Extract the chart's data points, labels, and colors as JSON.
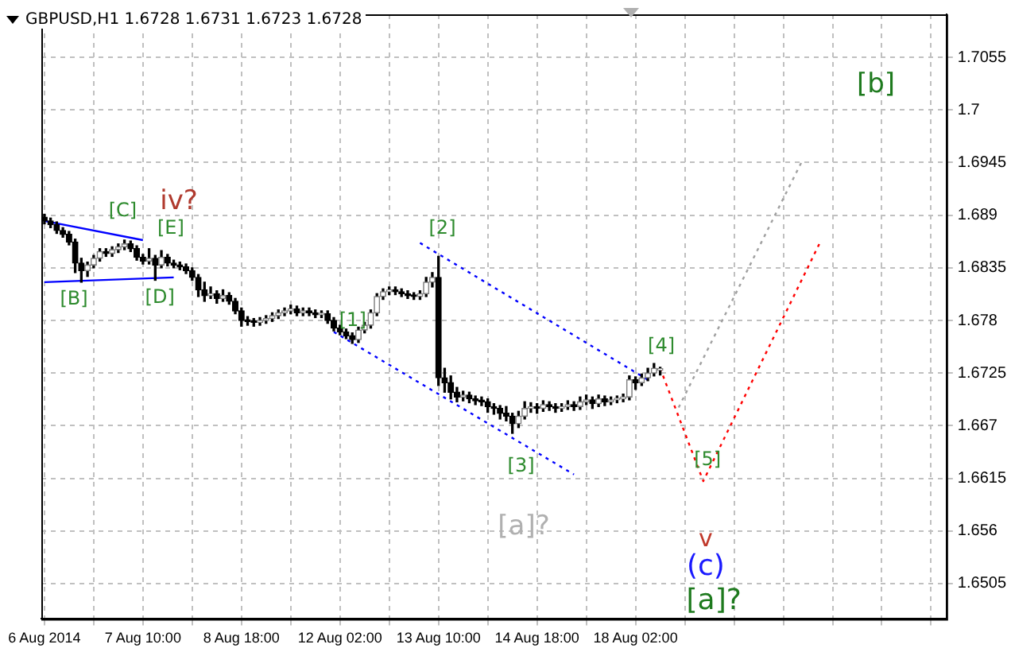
{
  "chart_data": {
    "type": "candlestick",
    "title": "GBPUSD,H1  1.6728 1.6731 1.6723 1.6728",
    "categories": [
      "6 Aug 2014",
      null,
      null,
      null,
      null,
      null,
      null,
      null,
      null,
      null,
      null,
      null,
      null,
      null,
      null,
      null,
      "7 Aug 10:00",
      null,
      null,
      null,
      null,
      null,
      null,
      null,
      null,
      null,
      null,
      null,
      null,
      null,
      null,
      null,
      "8 Aug 18:00",
      null,
      null,
      null,
      null,
      null,
      null,
      null,
      null,
      null,
      null,
      null,
      null,
      null,
      null,
      null,
      "12 Aug 02:00",
      null,
      null,
      null,
      null,
      null,
      null,
      null,
      null,
      null,
      null,
      null,
      null,
      null,
      null,
      null,
      "13 Aug 10:00",
      null,
      null,
      null,
      null,
      null,
      null,
      null,
      null,
      null,
      null,
      null,
      null,
      null,
      null,
      null,
      "14 Aug 18:00",
      null,
      null,
      null,
      null,
      null,
      null,
      null,
      null,
      null,
      null,
      null,
      null,
      null,
      null,
      null,
      "18 Aug 02:00",
      null,
      null,
      null,
      null,
      null,
      null,
      null,
      null,
      null,
      null,
      null,
      null,
      null,
      null,
      null,
      null,
      null,
      null,
      null,
      null,
      null,
      null,
      null,
      null,
      null,
      null,
      null,
      null,
      null,
      null,
      null,
      null,
      null,
      null,
      null,
      null,
      null,
      null,
      null,
      null,
      null,
      null,
      null,
      null,
      null,
      null,
      null,
      null,
      null,
      null
    ],
    "ohlc": [
      [
        1.6888,
        1.6891,
        1.6881,
        1.6884
      ],
      [
        1.6884,
        1.6887,
        1.6877,
        1.688
      ],
      [
        1.688,
        1.6883,
        1.6871,
        1.6874
      ],
      [
        1.6874,
        1.6877,
        1.6867,
        1.687
      ],
      [
        1.687,
        1.6873,
        1.6859,
        1.6862
      ],
      [
        1.6862,
        1.6865,
        1.683,
        1.684
      ],
      [
        1.684,
        1.6845,
        1.682,
        1.6832
      ],
      [
        1.6832,
        1.6841,
        1.6826,
        1.6838
      ],
      [
        1.6838,
        1.6848,
        1.6835,
        1.6845
      ],
      [
        1.6845,
        1.6855,
        1.6842,
        1.6852
      ],
      [
        1.6852,
        1.6855,
        1.6847,
        1.685
      ],
      [
        1.685,
        1.6857,
        1.6847,
        1.6854
      ],
      [
        1.6854,
        1.686,
        1.6851,
        1.6857
      ],
      [
        1.6857,
        1.6864,
        1.6854,
        1.686
      ],
      [
        1.686,
        1.6863,
        1.6852,
        1.6855
      ],
      [
        1.6855,
        1.6858,
        1.6843,
        1.6846
      ],
      [
        1.6846,
        1.6849,
        1.6839,
        1.6842
      ],
      [
        1.6842,
        1.6855,
        1.6839,
        1.6845
      ],
      [
        1.6845,
        1.6848,
        1.6822,
        1.6838
      ],
      [
        1.6838,
        1.6853,
        1.6835,
        1.6846
      ],
      [
        1.6846,
        1.6849,
        1.6837,
        1.684
      ],
      [
        1.684,
        1.6843,
        1.6835,
        1.6838
      ],
      [
        1.6838,
        1.6841,
        1.6833,
        1.6836
      ],
      [
        1.6836,
        1.6839,
        1.6829,
        1.6832
      ],
      [
        1.6832,
        1.6835,
        1.6822,
        1.6825
      ],
      [
        1.6825,
        1.6828,
        1.6805,
        1.6812
      ],
      [
        1.6812,
        1.682,
        1.68,
        1.6806
      ],
      [
        1.6806,
        1.6815,
        1.6803,
        1.6808
      ],
      [
        1.6808,
        1.6811,
        1.6798,
        1.6803
      ],
      [
        1.6803,
        1.6812,
        1.68,
        1.6806
      ],
      [
        1.6806,
        1.6809,
        1.6797,
        1.68
      ],
      [
        1.68,
        1.6803,
        1.6787,
        1.679
      ],
      [
        1.679,
        1.6793,
        1.6774,
        1.678
      ],
      [
        1.678,
        1.6784,
        1.6775,
        1.6779
      ],
      [
        1.6779,
        1.6782,
        1.6774,
        1.6778
      ],
      [
        1.6778,
        1.6783,
        1.6775,
        1.678
      ],
      [
        1.678,
        1.6785,
        1.6777,
        1.6782
      ],
      [
        1.6782,
        1.6788,
        1.6779,
        1.6785
      ],
      [
        1.6785,
        1.6791,
        1.6782,
        1.6788
      ],
      [
        1.6788,
        1.6793,
        1.6785,
        1.679
      ],
      [
        1.679,
        1.6796,
        1.6787,
        1.6792
      ],
      [
        1.6792,
        1.6795,
        1.6785,
        1.6788
      ],
      [
        1.6788,
        1.6793,
        1.6785,
        1.679
      ],
      [
        1.679,
        1.6793,
        1.6785,
        1.6788
      ],
      [
        1.6788,
        1.6791,
        1.6783,
        1.6786
      ],
      [
        1.6786,
        1.679,
        1.6783,
        1.6787
      ],
      [
        1.6787,
        1.679,
        1.6777,
        1.678
      ],
      [
        1.678,
        1.6783,
        1.6769,
        1.6772
      ],
      [
        1.6772,
        1.6775,
        1.6765,
        1.6768
      ],
      [
        1.6768,
        1.6771,
        1.6761,
        1.6764
      ],
      [
        1.6764,
        1.6767,
        1.6756,
        1.676
      ],
      [
        1.676,
        1.6773,
        1.6757,
        1.677
      ],
      [
        1.677,
        1.6778,
        1.6767,
        1.6775
      ],
      [
        1.6775,
        1.6791,
        1.6772,
        1.6788
      ],
      [
        1.6788,
        1.6808,
        1.6785,
        1.6805
      ],
      [
        1.6805,
        1.6813,
        1.6802,
        1.681
      ],
      [
        1.681,
        1.6815,
        1.6807,
        1.6812
      ],
      [
        1.6812,
        1.6815,
        1.6807,
        1.681
      ],
      [
        1.681,
        1.6813,
        1.6805,
        1.6808
      ],
      [
        1.6808,
        1.6811,
        1.6803,
        1.6806
      ],
      [
        1.6806,
        1.6809,
        1.6802,
        1.6805
      ],
      [
        1.6805,
        1.6811,
        1.6802,
        1.6808
      ],
      [
        1.6808,
        1.6825,
        1.6805,
        1.682
      ],
      [
        1.682,
        1.683,
        1.6815,
        1.6825
      ],
      [
        1.6825,
        1.6847,
        1.6712,
        1.672
      ],
      [
        1.672,
        1.673,
        1.6705,
        1.6715
      ],
      [
        1.6715,
        1.6722,
        1.6698,
        1.6705
      ],
      [
        1.6705,
        1.671,
        1.6695,
        1.67
      ],
      [
        1.67,
        1.6706,
        1.6696,
        1.6702
      ],
      [
        1.6702,
        1.6705,
        1.6694,
        1.6698
      ],
      [
        1.6698,
        1.6701,
        1.6692,
        1.6696
      ],
      [
        1.6696,
        1.67,
        1.6691,
        1.6695
      ],
      [
        1.6695,
        1.6698,
        1.6684,
        1.669
      ],
      [
        1.669,
        1.6693,
        1.6682,
        1.6688
      ],
      [
        1.6688,
        1.6691,
        1.6677,
        1.6683
      ],
      [
        1.6683,
        1.669,
        1.6675,
        1.668
      ],
      [
        1.668,
        1.6683,
        1.6662,
        1.6672
      ],
      [
        1.6672,
        1.6685,
        1.6668,
        1.668
      ],
      [
        1.668,
        1.6695,
        1.6677,
        1.6688
      ],
      [
        1.6688,
        1.6694,
        1.6684,
        1.669
      ],
      [
        1.669,
        1.6693,
        1.6683,
        1.6688
      ],
      [
        1.6688,
        1.6696,
        1.6685,
        1.6692
      ],
      [
        1.6692,
        1.6695,
        1.6686,
        1.669
      ],
      [
        1.669,
        1.6693,
        1.6684,
        1.6688
      ],
      [
        1.6688,
        1.6693,
        1.6685,
        1.669
      ],
      [
        1.669,
        1.6696,
        1.6687,
        1.6692
      ],
      [
        1.6692,
        1.6695,
        1.6686,
        1.669
      ],
      [
        1.669,
        1.67,
        1.6687,
        1.6695
      ],
      [
        1.6695,
        1.6702,
        1.6692,
        1.6697
      ],
      [
        1.6697,
        1.67,
        1.6688,
        1.6693
      ],
      [
        1.6693,
        1.6702,
        1.669,
        1.6698
      ],
      [
        1.6698,
        1.6701,
        1.6691,
        1.6695
      ],
      [
        1.6695,
        1.67,
        1.6692,
        1.6697
      ],
      [
        1.6697,
        1.6701,
        1.6694,
        1.6698
      ],
      [
        1.6698,
        1.6703,
        1.6695,
        1.67
      ],
      [
        1.67,
        1.6722,
        1.6697,
        1.6718
      ],
      [
        1.6718,
        1.6721,
        1.6708,
        1.6715
      ],
      [
        1.6715,
        1.6724,
        1.6712,
        1.672
      ],
      [
        1.672,
        1.673,
        1.6717,
        1.6725
      ],
      [
        1.6725,
        1.6735,
        1.6722,
        1.673
      ],
      [
        1.6728,
        1.6731,
        1.6723,
        1.6728
      ],
      null,
      null,
      null,
      null,
      null,
      null,
      null,
      null,
      null,
      null,
      null,
      null,
      null,
      null,
      null,
      null,
      null,
      null,
      null,
      null,
      null,
      null,
      null,
      null,
      null,
      null,
      null,
      null,
      null,
      null,
      null,
      null,
      null,
      null,
      null,
      null,
      null,
      null,
      null,
      null,
      null,
      null,
      null,
      null,
      null,
      null
    ],
    "series": [
      {
        "type": "line",
        "color": "#ff0000",
        "line_style": "dotted",
        "values": [
          null,
          null,
          null,
          null,
          null,
          null,
          null,
          null,
          null,
          null,
          null,
          null,
          null,
          null,
          null,
          null,
          null,
          null,
          null,
          null,
          null,
          null,
          null,
          null,
          null,
          null,
          null,
          null,
          null,
          null,
          null,
          null,
          null,
          null,
          null,
          null,
          null,
          null,
          null,
          null,
          null,
          null,
          null,
          null,
          null,
          null,
          null,
          null,
          null,
          null,
          null,
          null,
          null,
          null,
          null,
          null,
          null,
          null,
          null,
          null,
          null,
          null,
          null,
          null,
          null,
          null,
          null,
          null,
          null,
          null,
          null,
          null,
          null,
          null,
          null,
          null,
          null,
          null,
          null,
          null,
          null,
          null,
          null,
          null,
          null,
          null,
          null,
          null,
          null,
          null,
          null,
          null,
          null,
          null,
          null,
          null,
          null,
          null,
          null,
          null,
          1.673,
          null,
          null,
          null,
          null,
          null,
          null,
          1.6612,
          null,
          null,
          null,
          null,
          null,
          null,
          null,
          null,
          null,
          null,
          null,
          null,
          null,
          null,
          null,
          null,
          null,
          null,
          1.6862,
          null,
          null,
          null,
          null,
          null,
          null,
          null,
          null,
          null,
          null,
          null,
          null,
          null,
          null,
          null,
          null,
          null,
          null,
          null,
          null
        ]
      },
      {
        "type": "line",
        "color": "#a0a0a0",
        "line_style": "dotted",
        "values": [
          null,
          null,
          null,
          null,
          null,
          null,
          null,
          null,
          null,
          null,
          null,
          null,
          null,
          null,
          null,
          null,
          null,
          null,
          null,
          null,
          null,
          null,
          null,
          null,
          null,
          null,
          null,
          null,
          null,
          null,
          null,
          null,
          null,
          null,
          null,
          null,
          null,
          null,
          null,
          null,
          null,
          null,
          null,
          null,
          null,
          null,
          null,
          null,
          null,
          null,
          null,
          null,
          null,
          null,
          null,
          null,
          null,
          null,
          null,
          null,
          null,
          null,
          null,
          null,
          null,
          null,
          null,
          null,
          null,
          null,
          null,
          null,
          null,
          null,
          null,
          null,
          null,
          null,
          null,
          null,
          null,
          null,
          null,
          null,
          null,
          null,
          null,
          null,
          null,
          null,
          null,
          null,
          null,
          null,
          null,
          null,
          null,
          null,
          null,
          null,
          null,
          null,
          null,
          1.6689,
          null,
          null,
          null,
          null,
          null,
          null,
          null,
          null,
          null,
          null,
          null,
          null,
          null,
          null,
          null,
          null,
          null,
          null,
          null,
          1.6946,
          null,
          null,
          null,
          null,
          null,
          null,
          null,
          null,
          null,
          null,
          null,
          null,
          null,
          null,
          null,
          null,
          null,
          null,
          null,
          null,
          null,
          null,
          null
        ]
      },
      {
        "type": "line",
        "color": "#0000ff",
        "line_style": "dotted",
        "values": [
          null,
          null,
          null,
          null,
          null,
          null,
          null,
          null,
          null,
          null,
          null,
          null,
          null,
          null,
          null,
          null,
          null,
          null,
          null,
          null,
          null,
          null,
          null,
          null,
          null,
          null,
          null,
          null,
          null,
          null,
          null,
          null,
          null,
          null,
          null,
          null,
          null,
          null,
          null,
          null,
          null,
          null,
          null,
          null,
          null,
          null,
          null,
          null,
          null,
          null,
          null,
          null,
          null,
          null,
          null,
          null,
          null,
          null,
          null,
          null,
          null,
          1.6861,
          null,
          null,
          null,
          null,
          null,
          null,
          null,
          null,
          null,
          null,
          null,
          null,
          null,
          null,
          null,
          null,
          null,
          null,
          null,
          null,
          null,
          null,
          null,
          null,
          null,
          null,
          null,
          null,
          null,
          null,
          null,
          null,
          null,
          null,
          null,
          null,
          1.6718,
          null,
          null,
          null,
          null,
          null,
          null,
          null,
          null,
          null,
          null,
          null,
          null,
          null,
          null,
          null,
          null,
          null,
          null,
          null,
          null,
          null,
          null,
          null,
          null,
          null,
          null,
          null,
          null,
          null,
          null,
          null,
          null,
          null,
          null,
          null,
          null,
          null,
          null,
          null,
          null,
          null,
          null,
          null,
          null,
          null,
          null,
          null,
          null
        ]
      },
      {
        "type": "line",
        "color": "#0000ff",
        "line_style": "dotted",
        "values": [
          null,
          null,
          null,
          null,
          null,
          null,
          null,
          null,
          null,
          null,
          null,
          null,
          null,
          null,
          null,
          null,
          null,
          null,
          null,
          null,
          null,
          null,
          null,
          null,
          null,
          null,
          null,
          null,
          null,
          null,
          null,
          null,
          null,
          null,
          null,
          null,
          null,
          null,
          null,
          null,
          null,
          null,
          null,
          null,
          null,
          null,
          null,
          1.6768,
          null,
          null,
          null,
          null,
          null,
          null,
          null,
          null,
          null,
          null,
          null,
          null,
          null,
          null,
          null,
          null,
          null,
          null,
          null,
          null,
          null,
          null,
          null,
          null,
          null,
          null,
          null,
          null,
          null,
          null,
          null,
          null,
          null,
          null,
          null,
          null,
          null,
          null,
          1.6619,
          null,
          null,
          null,
          null,
          null,
          null,
          null,
          null,
          null,
          null,
          null,
          null,
          null,
          null,
          null,
          null,
          null,
          null,
          null,
          null,
          null,
          null,
          null,
          null,
          null,
          null,
          null,
          null,
          null,
          null,
          null,
          null,
          null,
          null,
          null,
          null,
          null,
          null,
          null,
          null,
          null,
          null,
          null,
          null,
          null,
          null,
          null,
          null,
          null,
          null,
          null,
          null,
          null,
          null,
          null,
          null,
          null,
          null,
          null,
          null
        ]
      },
      {
        "type": "line",
        "color": "#0000ff",
        "line_style": "solid",
        "values": [
          1.6884,
          null,
          null,
          null,
          null,
          null,
          null,
          null,
          null,
          null,
          null,
          null,
          null,
          null,
          null,
          null,
          1.6864,
          null,
          null,
          null,
          null,
          null,
          null,
          null,
          null,
          null,
          null,
          null,
          null,
          null,
          null,
          null,
          null,
          null,
          null,
          null,
          null,
          null,
          null,
          null,
          null,
          null,
          null,
          null,
          null,
          null,
          null,
          null,
          null,
          null,
          null,
          null,
          null,
          null,
          null,
          null,
          null,
          null,
          null,
          null,
          null,
          null,
          null,
          null,
          null,
          null,
          null,
          null,
          null,
          null,
          null,
          null,
          null,
          null,
          null,
          null,
          null,
          null,
          null,
          null,
          null,
          null,
          null,
          null,
          null,
          null,
          null,
          null,
          null,
          null,
          null,
          null,
          null,
          null,
          null,
          null,
          null,
          null,
          null,
          null,
          null,
          null,
          null,
          null,
          null,
          null,
          null,
          null,
          null,
          null,
          null,
          null,
          null,
          null,
          null,
          null,
          null,
          null,
          null,
          null,
          null,
          null,
          null,
          null,
          null,
          null,
          null,
          null,
          null,
          null,
          null,
          null,
          null,
          null,
          null,
          null,
          null,
          null,
          null,
          null,
          null,
          null,
          null,
          null,
          null,
          null,
          null
        ]
      },
      {
        "type": "line",
        "color": "#0000ff",
        "line_style": "solid",
        "values": [
          1.682,
          null,
          null,
          null,
          null,
          null,
          null,
          null,
          null,
          null,
          null,
          null,
          null,
          null,
          null,
          null,
          null,
          null,
          null,
          null,
          null,
          1.6825,
          null,
          null,
          null,
          null,
          null,
          null,
          null,
          null,
          null,
          null,
          null,
          null,
          null,
          null,
          null,
          null,
          null,
          null,
          null,
          null,
          null,
          null,
          null,
          null,
          null,
          null,
          null,
          null,
          null,
          null,
          null,
          null,
          null,
          null,
          null,
          null,
          null,
          null,
          null,
          null,
          null,
          null,
          null,
          null,
          null,
          null,
          null,
          null,
          null,
          null,
          null,
          null,
          null,
          null,
          null,
          null,
          null,
          null,
          null,
          null,
          null,
          null,
          null,
          null,
          null,
          null,
          null,
          null,
          null,
          null,
          null,
          null,
          null,
          null,
          null,
          null,
          null,
          null,
          null,
          null,
          null,
          null,
          null,
          null,
          null,
          null,
          null,
          null,
          null,
          null,
          null,
          null,
          null,
          null,
          null,
          null,
          null,
          null,
          null,
          null,
          null,
          null,
          null,
          null,
          null,
          null,
          null,
          null,
          null,
          null,
          null,
          null,
          null,
          null,
          null,
          null,
          null,
          null,
          null,
          null,
          null,
          null,
          null,
          null,
          null
        ]
      }
    ],
    "annotations": [
      "[B]",
      "[C]",
      "[D]",
      "[E]",
      "iv?",
      "[1]",
      "[2]",
      "[3]",
      "[4]",
      "[5]",
      "v",
      "(c)",
      "[a]?",
      "[a]?",
      "[b]"
    ],
    "ylim": [
      1.6468,
      1.71
    ],
    "yticks": [
      1.6505,
      1.656,
      1.6615,
      1.667,
      1.6725,
      1.678,
      1.6835,
      1.689,
      1.6945,
      1.7,
      1.7055
    ],
    "grid": true,
    "legend": false
  }
}
